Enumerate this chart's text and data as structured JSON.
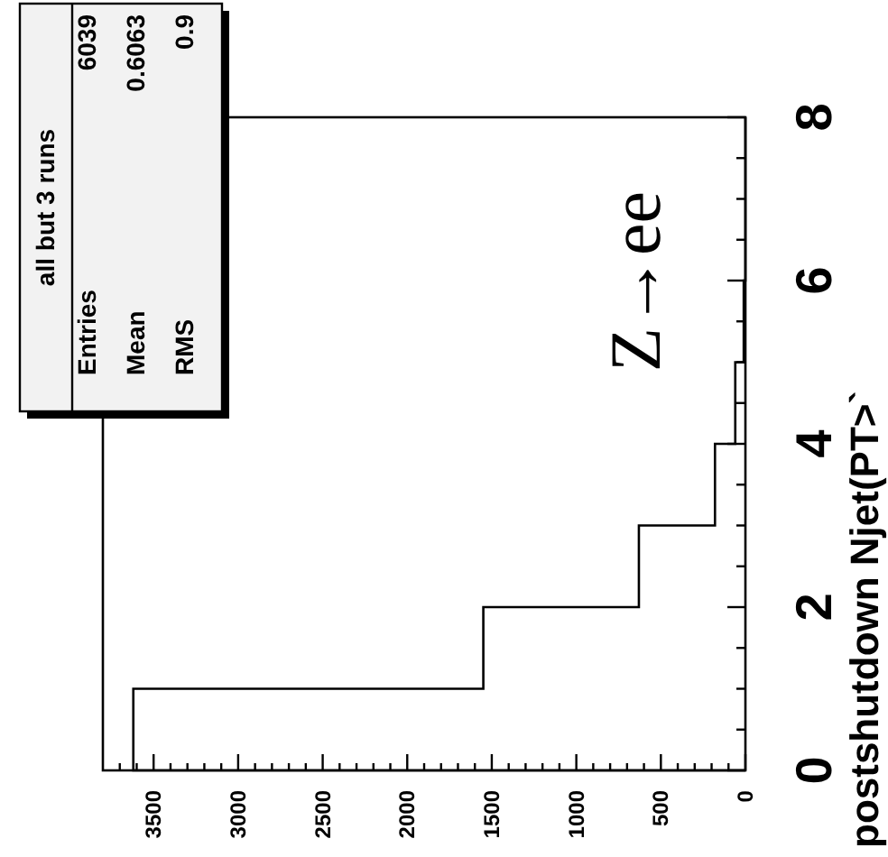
{
  "chart_data": {
    "type": "histogram",
    "orientation": "horizontal",
    "bins": [
      0,
      1,
      2,
      3,
      4,
      5,
      6,
      7,
      8
    ],
    "values": [
      3620,
      1550,
      630,
      180,
      60,
      10,
      0,
      0
    ],
    "color": "#000000",
    "ylim": [
      0,
      8
    ],
    "yticks": [
      0,
      {
        "value": 0.5,
        "label": null
      },
      {
        "value": 1,
        "label": null
      },
      {
        "value": 1.5,
        "label": null
      },
      2,
      {
        "value": 2.5,
        "label": null
      },
      {
        "value": 3,
        "label": null
      },
      {
        "value": 3.5,
        "label": null
      },
      4,
      {
        "value": 4.5,
        "label": null
      },
      {
        "value": 5,
        "label": null
      },
      {
        "value": 5.5,
        "label": null
      },
      6,
      {
        "value": 6.5,
        "label": null
      },
      {
        "value": 7,
        "label": null
      },
      {
        "value": 7.5,
        "label": null
      },
      8
    ],
    "xlim": [
      3800,
      0
    ],
    "xticks": [
      0,
      {
        "value": 100,
        "label": null
      },
      {
        "value": 200,
        "label": null
      },
      {
        "value": 300,
        "label": null
      },
      {
        "value": 400,
        "label": null
      },
      500,
      {
        "value": 600,
        "label": null
      },
      {
        "value": 700,
        "label": null
      },
      {
        "value": 800,
        "label": null
      },
      {
        "value": 900,
        "label": null
      },
      1000,
      {
        "value": 1100,
        "label": null
      },
      {
        "value": 1200,
        "label": null
      },
      {
        "value": 1300,
        "label": null
      },
      {
        "value": 1400,
        "label": null
      },
      1500,
      {
        "value": 1600,
        "label": null
      },
      {
        "value": 1700,
        "label": null
      },
      {
        "value": 1800,
        "label": null
      },
      {
        "value": 1900,
        "label": null
      },
      2000,
      {
        "value": 2100,
        "label": null
      },
      {
        "value": 2200,
        "label": null
      },
      {
        "value": 2300,
        "label": null
      },
      {
        "value": 2400,
        "label": null
      },
      2500,
      {
        "value": 2600,
        "label": null
      },
      {
        "value": 2700,
        "label": null
      },
      {
        "value": 2800,
        "label": null
      },
      {
        "value": 2900,
        "label": null
      },
      3000,
      {
        "value": 3100,
        "label": null
      },
      {
        "value": 3200,
        "label": null
      },
      {
        "value": 3300,
        "label": null
      },
      {
        "value": 3400,
        "label": null
      },
      3500,
      {
        "value": 3600,
        "label": null
      },
      {
        "value": 3700,
        "label": null
      }
    ],
    "ylabel": "postshutdown  Njet(PT>`",
    "annotations": [
      "Z→ee",
      "all but 3 runs",
      "Entries",
      "6039",
      "Mean",
      "0.6063",
      "RMS",
      "0.9"
    ]
  }
}
